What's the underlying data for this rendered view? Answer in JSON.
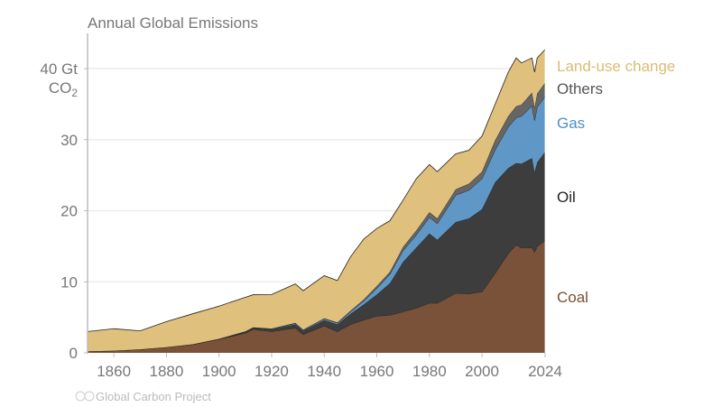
{
  "chart_data": {
    "type": "area",
    "stacked": true,
    "title": "Annual Global Emissions",
    "ylabel": "40 Gt",
    "ylabel_unit": "CO",
    "ylabel_unit_sub": "2",
    "xlim": [
      1850,
      2024
    ],
    "ylim": [
      0,
      45
    ],
    "grid": true,
    "legend": "right",
    "x_ticks": [
      "1860",
      "1880",
      "1900",
      "1920",
      "1940",
      "1960",
      "1980",
      "2000",
      "2024"
    ],
    "y_ticks": [
      "0",
      "10",
      "20",
      "30"
    ],
    "x": [
      1850,
      1860,
      1870,
      1880,
      1890,
      1900,
      1910,
      1913,
      1920,
      1929,
      1932,
      1940,
      1945,
      1950,
      1955,
      1960,
      1965,
      1970,
      1975,
      1980,
      1983,
      1990,
      1995,
      2000,
      2005,
      2010,
      2013,
      2015,
      2019,
      2020,
      2021,
      2024
    ],
    "series": [
      {
        "name": "Coal",
        "color": "#7a523a",
        "values": [
          0.2,
          0.3,
          0.5,
          0.8,
          1.2,
          1.9,
          2.8,
          3.3,
          3.0,
          3.5,
          2.6,
          3.8,
          3.0,
          4.0,
          4.6,
          5.2,
          5.3,
          5.8,
          6.3,
          7.0,
          7.0,
          8.4,
          8.3,
          8.6,
          11.2,
          14.0,
          15.2,
          14.8,
          14.8,
          14.2,
          15.0,
          15.8
        ]
      },
      {
        "name": "Oil",
        "color": "#3d3d3d",
        "values": [
          0,
          0,
          0,
          0,
          0,
          0.05,
          0.15,
          0.2,
          0.3,
          0.5,
          0.5,
          0.8,
          1.0,
          1.5,
          2.2,
          3.0,
          4.5,
          7.0,
          8.5,
          9.8,
          8.9,
          10.0,
          10.6,
          11.6,
          12.8,
          12.0,
          11.5,
          11.8,
          12.6,
          11.2,
          11.8,
          12.5
        ]
      },
      {
        "name": "Gas",
        "color": "#5f98c6",
        "values": [
          0,
          0,
          0,
          0,
          0,
          0,
          0.03,
          0.05,
          0.07,
          0.15,
          0.1,
          0.2,
          0.2,
          0.3,
          0.5,
          0.9,
          1.3,
          1.6,
          1.8,
          2.3,
          2.3,
          3.8,
          4.0,
          4.3,
          4.6,
          5.8,
          6.4,
          6.7,
          7.4,
          7.3,
          7.8,
          7.8
        ]
      },
      {
        "name": "Others",
        "color": "#666666",
        "values": [
          0,
          0,
          0,
          0,
          0,
          0.02,
          0.03,
          0.03,
          0.04,
          0.05,
          0.05,
          0.06,
          0.07,
          0.12,
          0.2,
          0.3,
          0.3,
          0.5,
          0.6,
          0.7,
          0.7,
          0.8,
          0.9,
          1.0,
          1.3,
          1.5,
          1.6,
          1.6,
          1.8,
          1.8,
          1.9,
          1.9
        ]
      },
      {
        "name": "Land-use change",
        "color": "#dfc07c",
        "values": [
          2.8,
          3.1,
          2.6,
          3.6,
          4.3,
          4.6,
          4.8,
          4.6,
          4.8,
          5.5,
          5.5,
          6.0,
          5.9,
          7.6,
          8.5,
          8.1,
          7.2,
          6.6,
          7.3,
          6.7,
          6.6,
          5.0,
          4.7,
          5.0,
          5.1,
          6.2,
          6.8,
          5.9,
          4.9,
          5.0,
          5.0,
          4.7
        ]
      }
    ],
    "legend_colors": {
      "Coal": "#7a4f36",
      "Oil": "#222222",
      "Gas": "#4d8fc8",
      "Others": "#555555",
      "Land-use change": "#dcbb76"
    }
  },
  "footer": {
    "credit": "Global Carbon Project",
    "license_icons": "cc-by"
  }
}
